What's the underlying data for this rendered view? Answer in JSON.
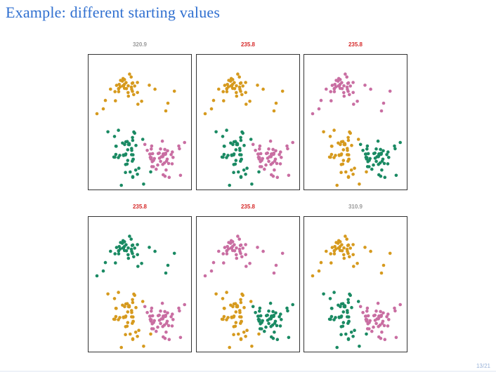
{
  "slide": {
    "title": "Example: different starting values",
    "page_number": "13/21"
  },
  "colors": {
    "orange": "#d69a1e",
    "green": "#1a8a63",
    "pink": "#c96ea2",
    "label_gray": "#999999",
    "label_red": "#d62a2a",
    "title_blue": "#2f6fd0"
  },
  "panels": [
    {
      "label": "320.9",
      "label_color": "gray",
      "colors": [
        "orange",
        "green",
        "pink"
      ]
    },
    {
      "label": "235.8",
      "label_color": "red",
      "colors": [
        "orange",
        "green",
        "pink"
      ]
    },
    {
      "label": "235.8",
      "label_color": "red",
      "colors": [
        "pink",
        "orange",
        "green"
      ]
    },
    {
      "label": "235.8",
      "label_color": "red",
      "colors": [
        "green",
        "orange",
        "pink"
      ]
    },
    {
      "label": "235.8",
      "label_color": "red",
      "colors": [
        "pink",
        "orange",
        "green"
      ]
    },
    {
      "label": "310.9",
      "label_color": "gray",
      "colors": [
        "orange",
        "green",
        "pink"
      ]
    }
  ]
}
